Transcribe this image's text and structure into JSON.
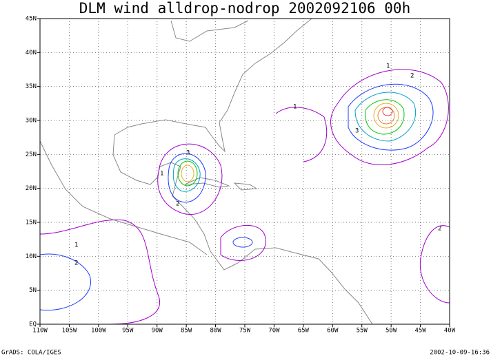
{
  "title": "DLM wind alldrop-nodrop 2002092106 00h",
  "x_labels": [
    "110W",
    "105W",
    "100W",
    "95W",
    "90W",
    "85W",
    "80W",
    "75W",
    "70W",
    "65W",
    "60W",
    "55W",
    "50W",
    "45W",
    "40W"
  ],
  "y_labels": [
    "EQ",
    "5N",
    "10N",
    "15N",
    "20N",
    "25N",
    "30N",
    "35N",
    "40N",
    "45N"
  ],
  "contour_labels": [
    "1",
    "2",
    "3"
  ],
  "footer_left": "GrADS: COLA/IGES",
  "footer_right": "2002-10-09-16:36"
}
